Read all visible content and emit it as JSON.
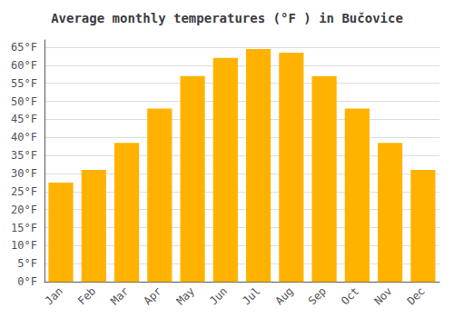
{
  "chart_data": {
    "type": "bar",
    "title": "Average monthly temperatures (°F ) in Bučovice",
    "categories": [
      "Jan",
      "Feb",
      "Mar",
      "Apr",
      "May",
      "Jun",
      "Jul",
      "Aug",
      "Sep",
      "Oct",
      "Nov",
      "Dec"
    ],
    "values": [
      27.5,
      31.0,
      38.5,
      48.0,
      57.0,
      62.0,
      64.5,
      63.5,
      57.0,
      48.0,
      38.5,
      31.0
    ],
    "color": "#FFB300",
    "ylim": [
      0,
      67
    ],
    "yticks": [
      {
        "value": 0,
        "label": "0°F"
      },
      {
        "value": 5,
        "label": "5°F"
      },
      {
        "value": 10,
        "label": "10°F"
      },
      {
        "value": 15,
        "label": "15°F"
      },
      {
        "value": 20,
        "label": "20°F"
      },
      {
        "value": 25,
        "label": "25°F"
      },
      {
        "value": 30,
        "label": "30°F"
      },
      {
        "value": 35,
        "label": "35°F"
      },
      {
        "value": 40,
        "label": "40°F"
      },
      {
        "value": 45,
        "label": "45°F"
      },
      {
        "value": 50,
        "label": "50°F"
      },
      {
        "value": 55,
        "label": "55°F"
      },
      {
        "value": 60,
        "label": "60°F"
      },
      {
        "value": 65,
        "label": "65°F"
      }
    ],
    "grid": true
  }
}
